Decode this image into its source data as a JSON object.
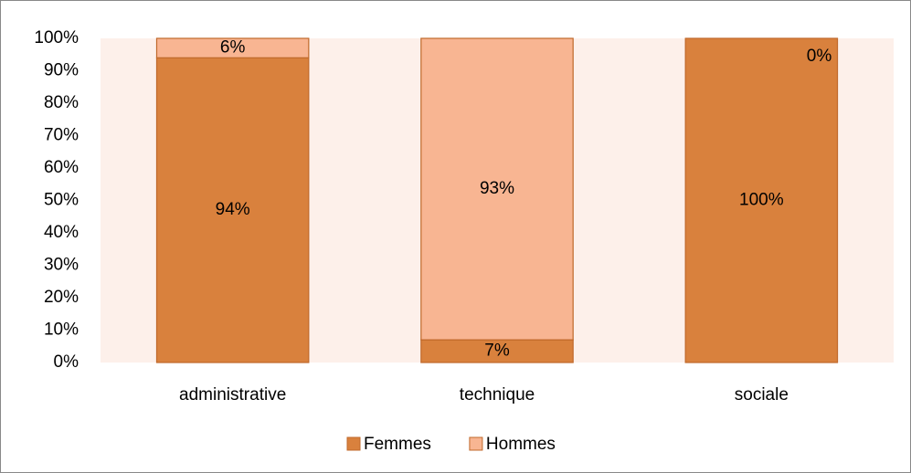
{
  "chart_data": {
    "type": "stacked_bar",
    "categories": [
      "administrative",
      "technique",
      "sociale"
    ],
    "series": [
      {
        "name": "Femmes",
        "color": "#d9813d",
        "values": [
          94,
          7,
          100
        ],
        "value_labels": [
          "94%",
          "7%",
          "100%"
        ]
      },
      {
        "name": "Hommes",
        "color": "#f8b592",
        "values": [
          6,
          93,
          0
        ],
        "value_labels": [
          "6%",
          "93%",
          "0%"
        ]
      }
    ],
    "ylim": [
      0,
      100
    ],
    "yticks": [
      {
        "value": 0,
        "label": "0%"
      },
      {
        "value": 10,
        "label": "10%"
      },
      {
        "value": 20,
        "label": "20%"
      },
      {
        "value": 30,
        "label": "30%"
      },
      {
        "value": 40,
        "label": "40%"
      },
      {
        "value": 50,
        "label": "50%"
      },
      {
        "value": 60,
        "label": "60%"
      },
      {
        "value": 70,
        "label": "70%"
      },
      {
        "value": 80,
        "label": "80%"
      },
      {
        "value": 90,
        "label": "90%"
      },
      {
        "value": 100,
        "label": "100%"
      }
    ],
    "legend": "bottom",
    "plot_background": "#fdf0ea"
  }
}
